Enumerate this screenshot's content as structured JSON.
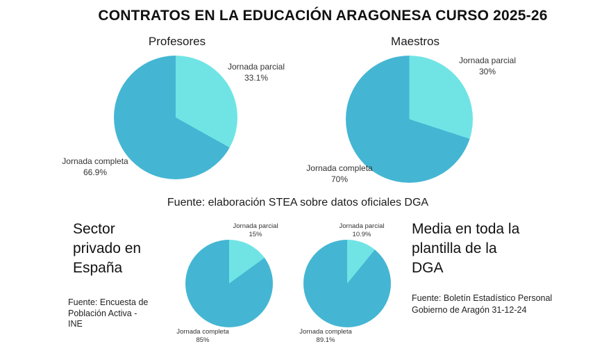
{
  "page": {
    "title": "CONTRATOS EN LA EDUCACIÓN ARAGONESA CURSO 2025-26",
    "middle_source": "Fuente: elaboración STEA sobre datos oficiales DGA"
  },
  "chart_data": [
    {
      "type": "pie",
      "title": "Profesores",
      "start_angle_deg": 0,
      "direction": "clockwise",
      "unit": "%",
      "slices": [
        {
          "label": "Jornada parcial",
          "value": 33.1,
          "display": "33.1%",
          "color": "#70E4E5"
        },
        {
          "label": "Jornada completa",
          "value": 66.9,
          "display": "66.9%",
          "color": "#44B6D3"
        }
      ]
    },
    {
      "type": "pie",
      "title": "Maestros",
      "start_angle_deg": 0,
      "direction": "clockwise",
      "unit": "%",
      "slices": [
        {
          "label": "Jornada parcial",
          "value": 30,
          "display": "30%",
          "color": "#70E4E5"
        },
        {
          "label": "Jornada completa",
          "value": 70,
          "display": "70%",
          "color": "#44B6D3"
        }
      ]
    },
    {
      "type": "pie",
      "title": "Sector privado en España",
      "start_angle_deg": 0,
      "direction": "clockwise",
      "unit": "%",
      "slices": [
        {
          "label": "Jornada parcial",
          "value": 15,
          "display": "15%",
          "color": "#70E4E5"
        },
        {
          "label": "Jornada completa",
          "value": 85,
          "display": "85%",
          "color": "#44B6D3"
        }
      ]
    },
    {
      "type": "pie",
      "title": "Media en toda la plantilla de la DGA",
      "start_angle_deg": 0,
      "direction": "clockwise",
      "unit": "%",
      "slices": [
        {
          "label": "Jornada parcial",
          "value": 10.9,
          "display": "10.9%",
          "color": "#70E4E5"
        },
        {
          "label": "Jornada completa",
          "value": 89.1,
          "display": "89.1%",
          "color": "#44B6D3"
        }
      ]
    }
  ],
  "sections": {
    "left": {
      "title_lines": [
        "Sector",
        "privado en",
        "España"
      ],
      "source_lines": [
        "Fuente:  Encuesta de",
        "Población Activa -",
        "INE"
      ]
    },
    "right": {
      "title_lines": [
        "Media en toda la",
        "plantilla de la",
        "DGA"
      ],
      "source_lines": [
        "Fuente: Boletín Estadístico Personal",
        "Gobierno de Aragón 31-12-24"
      ]
    }
  }
}
